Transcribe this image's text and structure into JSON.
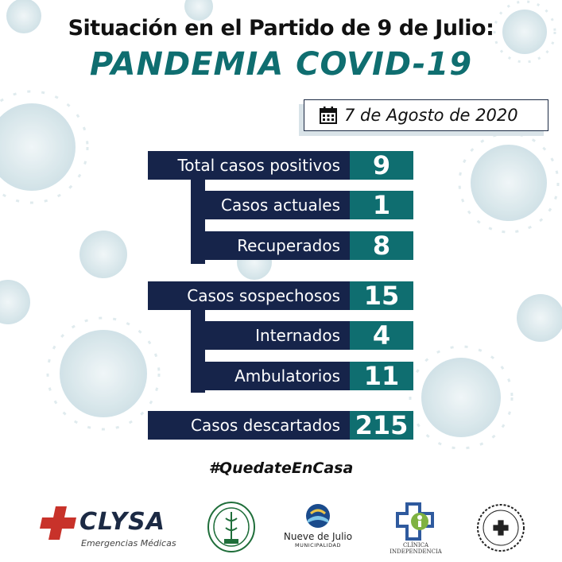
{
  "header": {
    "title_line1": "Situación en el Partido de 9 de Julio:",
    "title_line2": "PANDEMIA COVID-19"
  },
  "date": {
    "text": "7 de Agosto de 2020",
    "icon": "calendar-icon"
  },
  "stats": {
    "positivos": {
      "label": "Total casos positivos",
      "value": "9"
    },
    "actuales": {
      "label": "Casos actuales",
      "value": "1"
    },
    "recuperados": {
      "label": "Recuperados",
      "value": "8"
    },
    "sospechosos": {
      "label": "Casos sospechosos",
      "value": "15"
    },
    "internados": {
      "label": "Internados",
      "value": "4"
    },
    "ambulatorios": {
      "label": "Ambulatorios",
      "value": "11"
    },
    "descartados": {
      "label": "Casos descartados",
      "value": "215"
    }
  },
  "hashtag": "#QuedateEnCasa",
  "logos": {
    "clysa": {
      "name": "CLYSA",
      "tagline": "Emergencias Médicas"
    },
    "nueve_de_julio": {
      "name": "Nueve de Julio",
      "sub": "MUNICIPALIDAD"
    },
    "clinica": {
      "name": "CLÍNICA INDEPENDENCIA"
    }
  },
  "colors": {
    "navy": "#16244a",
    "teal": "#0f6e70",
    "virus": "#c9dfe4"
  }
}
